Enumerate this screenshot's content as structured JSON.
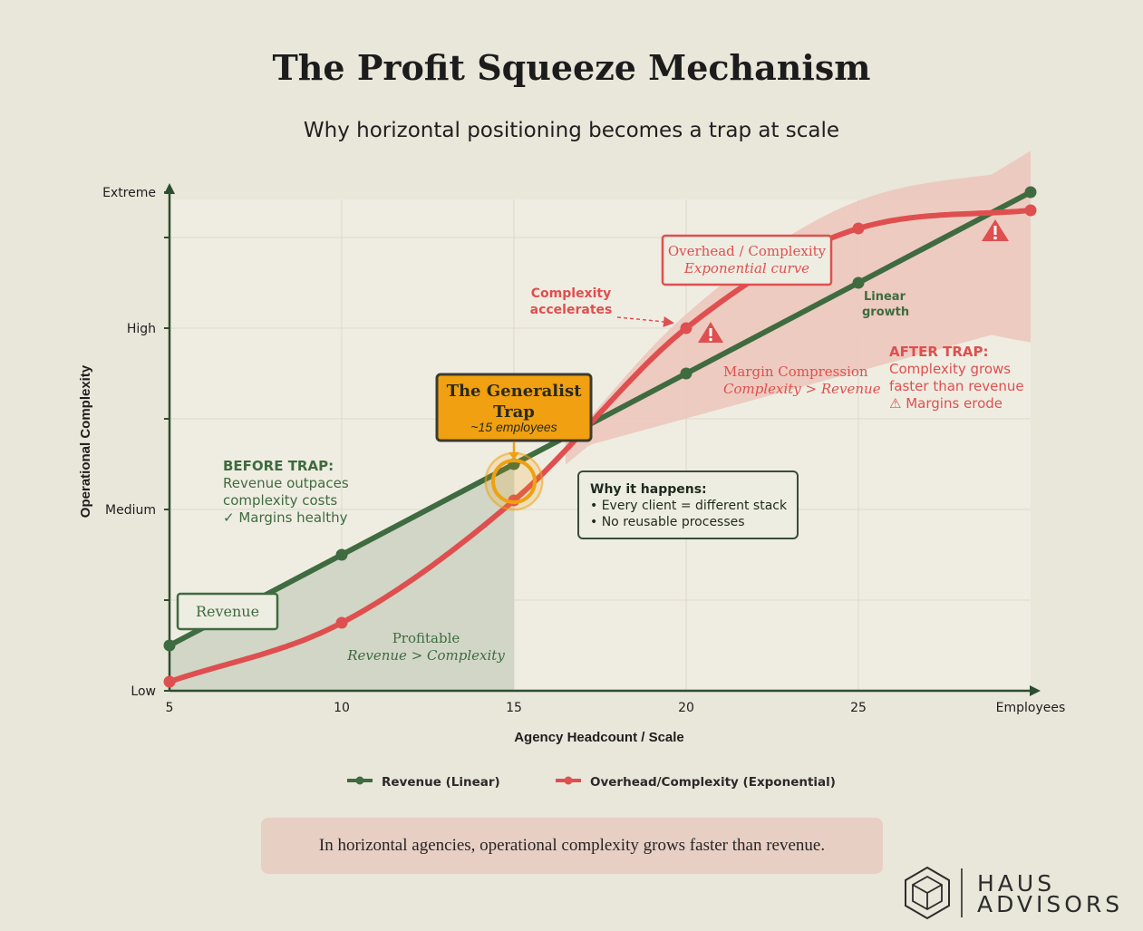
{
  "header": {
    "title": "The Profit Squeeze Mechanism",
    "subtitle": "Why horizontal positioning becomes a trap at scale"
  },
  "colors": {
    "revenue": "#3f6b40",
    "overhead": "#df4f4f",
    "trap": "#f0a010",
    "background": "#e9e6da",
    "plot_bg": "#efede2",
    "profit_zone": "#d1d6c6",
    "squeeze_band": "#ecc6bd",
    "footer_box": "#e8cfc4"
  },
  "chart_data": {
    "type": "line",
    "xlabel": "Agency Headcount / Scale",
    "ylabel": "Operational Complexity",
    "x_ticks": [
      "5",
      "10",
      "15",
      "20",
      "25",
      "Employees"
    ],
    "xlim": [
      5,
      30
    ],
    "y_ticks": [
      "Low",
      "Medium",
      "High",
      "Extreme"
    ],
    "ylim": [
      0,
      5.5
    ],
    "series": [
      {
        "name": "Revenue (Linear)",
        "x": [
          5,
          10,
          15,
          20,
          25,
          30
        ],
        "values": [
          0.5,
          1.5,
          2.5,
          3.5,
          4.5,
          5.5
        ]
      },
      {
        "name": "Overhead/Complexity (Exponential)",
        "x": [
          5,
          10,
          15,
          20,
          25,
          30
        ],
        "values": [
          0.1,
          0.75,
          2.1,
          4.0,
          5.1,
          5.3
        ]
      }
    ],
    "legend": [
      "Revenue (Linear)",
      "Overhead/Complexity (Exponential)"
    ],
    "legend_position": "bottom"
  },
  "annotations": {
    "trap_title": "The Generalist Trap",
    "trap_sub": "~15 employees",
    "before_heading": "BEFORE TRAP:",
    "before_line1": "Revenue outpaces",
    "before_line2": "complexity costs",
    "before_line3": "✓ Margins healthy",
    "revenue_label": "Revenue",
    "profitable_line1": "Profitable",
    "profitable_line2": "Revenue > Complexity",
    "why_heading": "Why it happens:",
    "why_line1": "• Every client = different stack",
    "why_line2": "• No reusable processes",
    "complexity_line1": "Complexity",
    "complexity_line2": "accelerates",
    "overhead_box1": "Overhead / Complexity",
    "overhead_box2": "Exponential curve",
    "margin_line1": "Margin Compression",
    "margin_line2": "Complexity > Revenue",
    "linear_line1": "Linear",
    "linear_line2": "growth",
    "after_heading": "AFTER TRAP:",
    "after_line1": "Complexity grows",
    "after_line2": "faster than revenue",
    "after_line3": "⚠ Margins erode"
  },
  "footer": {
    "message": "In horizontal agencies, operational complexity grows faster than revenue."
  },
  "logo": {
    "line1": "HAUS",
    "line2": "ADVISORS",
    "icon": "hexagon-cube-icon"
  }
}
